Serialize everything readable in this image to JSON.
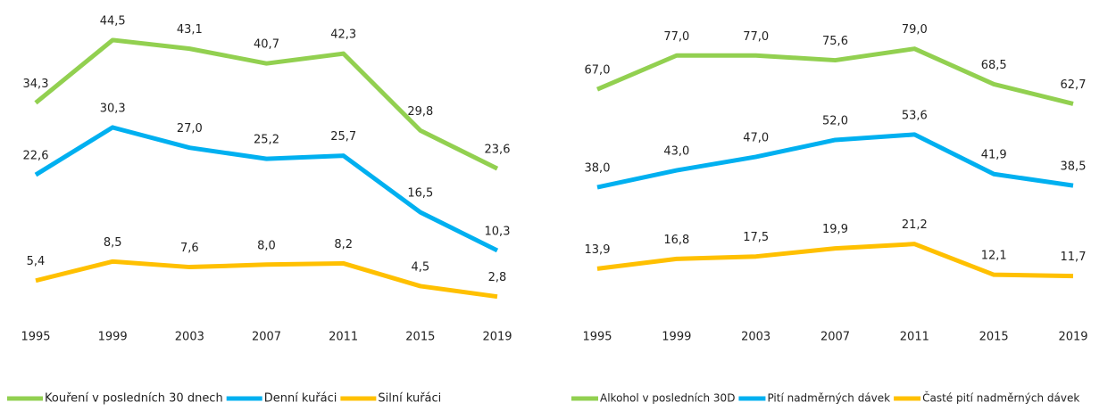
{
  "chart_data": [
    {
      "type": "line",
      "categories": [
        "1995",
        "1999",
        "2003",
        "2007",
        "2011",
        "2015",
        "2019"
      ],
      "ylim": [
        0,
        50
      ],
      "series": [
        {
          "name": "Kouření v posledních 30 dnech",
          "color": "#92d050",
          "values": [
            34.3,
            44.5,
            43.1,
            40.7,
            42.3,
            29.8,
            23.6
          ],
          "value_labels": [
            "34,3",
            "44,5",
            "43,1",
            "40,7",
            "42,3",
            "29,8",
            "23,6"
          ]
        },
        {
          "name": "Denní kuřáci",
          "color": "#00b0f0",
          "values": [
            22.6,
            30.3,
            27.0,
            25.2,
            25.7,
            16.5,
            10.3
          ],
          "value_labels": [
            "22,6",
            "30,3",
            "27,0",
            "25,2",
            "25,7",
            "16,5",
            "10,3"
          ]
        },
        {
          "name": "Silní kuřáci",
          "color": "#ffc000",
          "values": [
            5.4,
            8.5,
            7.6,
            8.0,
            8.2,
            4.5,
            2.8
          ],
          "value_labels": [
            "5,4",
            "8,5",
            "7,6",
            "8,0",
            "8,2",
            "4,5",
            "2,8"
          ]
        }
      ]
    },
    {
      "type": "line",
      "categories": [
        "1995",
        "1999",
        "2003",
        "2007",
        "2011",
        "2015",
        "2019"
      ],
      "ylim": [
        0,
        90
      ],
      "series": [
        {
          "name": "Alkohol v posledních 30D",
          "color": "#92d050",
          "values": [
            67.0,
            77.0,
            77.0,
            75.6,
            79.0,
            68.5,
            62.7
          ],
          "value_labels": [
            "67,0",
            "77,0",
            "77,0",
            "75,6",
            "79,0",
            "68,5",
            "62,7"
          ]
        },
        {
          "name": "Pití nadměrných dávek",
          "color": "#00b0f0",
          "values": [
            38.0,
            43.0,
            47.0,
            52.0,
            53.6,
            41.9,
            38.5
          ],
          "value_labels": [
            "38,0",
            "43,0",
            "47,0",
            "52,0",
            "53,6",
            "41,9",
            "38,5"
          ]
        },
        {
          "name": "Časté pití nadměrných dávek",
          "color": "#ffc000",
          "values": [
            13.9,
            16.8,
            17.5,
            19.9,
            21.2,
            12.1,
            11.7
          ],
          "value_labels": [
            "13,9",
            "16,8",
            "17,5",
            "19,9",
            "21,2",
            "12,1",
            "11,7"
          ]
        }
      ]
    }
  ]
}
